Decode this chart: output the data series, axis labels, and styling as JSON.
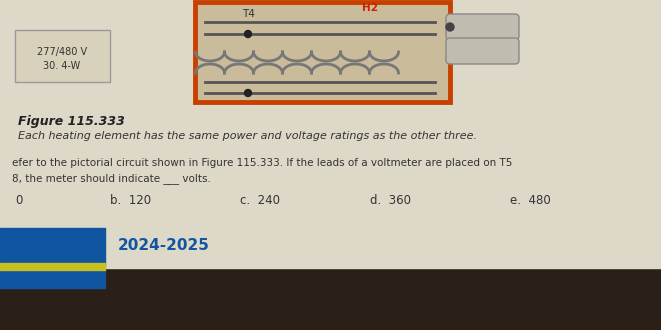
{
  "page_bg": "#ddd8c8",
  "fig_title": "Figure 115.333",
  "caption_line1": "Each heating element has the same power and voltage ratings as the other three.",
  "question_line1": "efer to the pictorial circuit shown in Figure 115.333. If the leads of a voltmeter are placed on T5",
  "question_line2": "8, the meter should indicate ___ volts.",
  "answers": [
    "0",
    "b.  120",
    "c.  240",
    "d.  360",
    "e.  480"
  ],
  "ans_x": [
    15,
    110,
    240,
    370,
    510
  ],
  "year": "2024-2025",
  "voltage_label": "277/480 V",
  "power_label": "30. 4-W",
  "t4_label": "T4",
  "h2_label": "H2",
  "orange_box_color": "#c84000",
  "diagram_bg": "#cabb9a",
  "label_box_bg": "#d8d2bc",
  "blue_bar_color": "#1055a0",
  "yellow_bar_color": "#c8c020",
  "dark_bg": "#2a2018",
  "text_color": "#333333",
  "title_color": "#222222"
}
